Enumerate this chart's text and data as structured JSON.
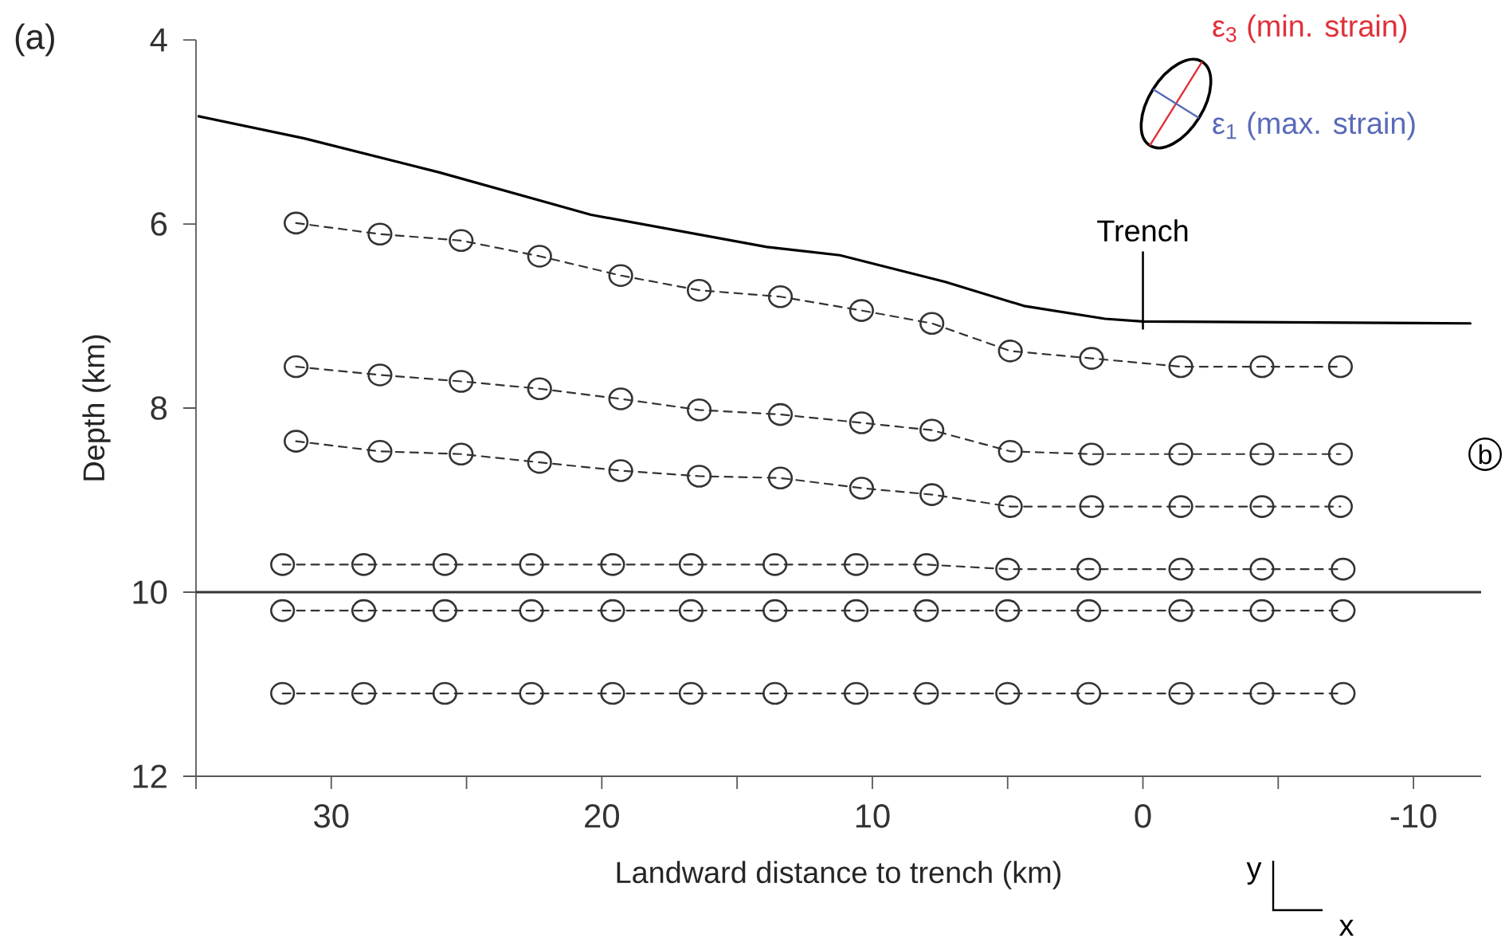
{
  "chart_data": {
    "type": "line",
    "xlabel": "Landward distance to trench (km)",
    "ylabel": "Depth (km)",
    "xlim": [
      35,
      -12.5
    ],
    "ylim": [
      12,
      4
    ],
    "xticks": [
      {
        "value": 35,
        "label": null
      },
      30,
      {
        "value": 25,
        "label": null
      },
      20,
      {
        "value": 15,
        "label": null
      },
      10,
      {
        "value": 5,
        "label": null
      },
      0,
      {
        "value": -5,
        "label": null
      },
      -10
    ],
    "yticks": [
      4,
      6,
      8,
      10,
      12
    ],
    "series": [
      {
        "color": "#000000",
        "marker": "none",
        "line_style": "solid",
        "x": [
          34.9,
          31,
          26,
          20.4,
          13.9,
          11.2,
          7.3,
          4.4,
          1.4,
          0,
          -12.1
        ],
        "values": [
          4.83,
          5.07,
          5.44,
          5.9,
          6.25,
          6.34,
          6.63,
          6.89,
          7.03,
          7.06,
          7.08
        ]
      },
      {
        "color": "#333333",
        "marker": "circle",
        "line_style": "dashed",
        "x": [
          31.3,
          28.2,
          25.2,
          22.3,
          19.3,
          16.4,
          13.4,
          10.4,
          7.8,
          4.9,
          1.9,
          -1.4,
          -4.4,
          -7.3
        ],
        "values": [
          5.99,
          6.11,
          6.18,
          6.35,
          6.56,
          6.72,
          6.79,
          6.94,
          7.08,
          7.38,
          7.46,
          7.55,
          7.55,
          7.55
        ]
      },
      {
        "color": "#333333",
        "marker": "circle",
        "line_style": "dashed",
        "x": [
          31.3,
          28.2,
          25.2,
          22.3,
          19.3,
          16.4,
          13.4,
          10.4,
          7.8,
          4.9,
          1.9,
          -1.4,
          -4.4,
          -7.3
        ],
        "values": [
          7.55,
          7.64,
          7.71,
          7.79,
          7.9,
          8.02,
          8.07,
          8.16,
          8.24,
          8.47,
          8.5,
          8.5,
          8.5,
          8.5
        ]
      },
      {
        "color": "#333333",
        "marker": "circle",
        "line_style": "dashed",
        "x": [
          31.3,
          28.2,
          25.2,
          22.3,
          19.3,
          16.4,
          13.4,
          10.4,
          7.8,
          4.9,
          1.9,
          -1.4,
          -4.4,
          -7.3
        ],
        "values": [
          8.36,
          8.47,
          8.5,
          8.59,
          8.68,
          8.74,
          8.76,
          8.87,
          8.94,
          9.07,
          9.07,
          9.07,
          9.07,
          9.07
        ]
      },
      {
        "color": "#333333",
        "marker": "circle",
        "line_style": "dashed",
        "x": [
          31.8,
          28.8,
          25.8,
          22.6,
          19.6,
          16.7,
          13.6,
          10.6,
          8.0,
          5.0,
          2.0,
          -1.4,
          -4.4,
          -7.4
        ],
        "values": [
          9.7,
          9.7,
          9.7,
          9.7,
          9.7,
          9.7,
          9.7,
          9.7,
          9.7,
          9.75,
          9.75,
          9.75,
          9.75,
          9.75
        ]
      },
      {
        "color": "#333333",
        "marker": "circle",
        "line_style": "dashed",
        "x": [
          31.8,
          28.8,
          25.8,
          22.6,
          19.6,
          16.7,
          13.6,
          10.6,
          8.0,
          5.0,
          2.0,
          -1.4,
          -4.4,
          -7.4
        ],
        "values": [
          10.2,
          10.2,
          10.2,
          10.2,
          10.2,
          10.2,
          10.2,
          10.2,
          10.2,
          10.2,
          10.2,
          10.2,
          10.2,
          10.2
        ]
      },
      {
        "color": "#333333",
        "marker": "circle",
        "line_style": "dashed",
        "x": [
          31.8,
          28.8,
          25.8,
          22.6,
          19.6,
          16.7,
          13.6,
          10.6,
          8.0,
          5.0,
          2.0,
          -1.4,
          -4.4,
          -7.4
        ],
        "values": [
          11.1,
          11.1,
          11.1,
          11.1,
          11.1,
          11.1,
          11.1,
          11.1,
          11.1,
          11.1,
          11.1,
          11.1,
          11.1,
          11.1
        ]
      }
    ],
    "ref_lines": [
      {
        "axis": "y",
        "value": 10,
        "color": "#333333"
      }
    ],
    "annotations": [
      "(a)",
      {
        "text": "Trench",
        "x": 0,
        "y": 7.06
      },
      "ε$_{3}$ (min. strain)",
      "ε$_{1}$ (max. strain)",
      "b",
      "y",
      "x"
    ]
  }
}
